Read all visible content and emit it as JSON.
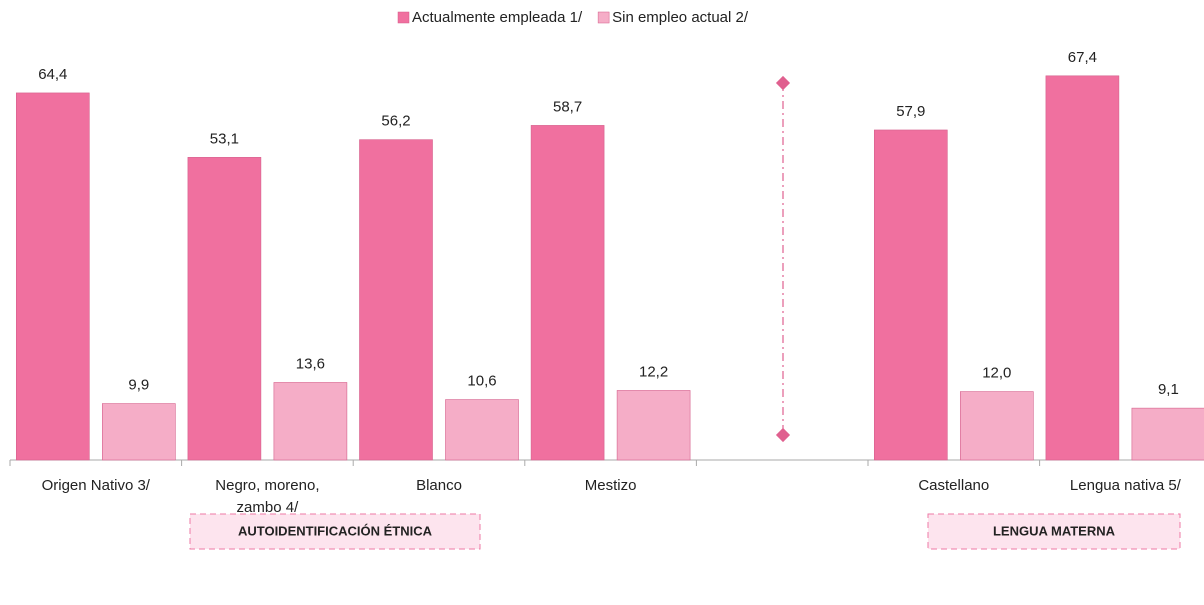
{
  "chart_data": {
    "type": "bar",
    "categories": [
      "Origen Nativo 3/",
      "Negro, moreno, zambo 4/",
      "Blanco",
      "Mestizo",
      null,
      "Castellano",
      "Lengua nativa 5/"
    ],
    "series": [
      {
        "name": "Actualmente empleada 1/",
        "color": "#f0709f",
        "values": [
          64.4,
          53.1,
          56.2,
          58.7,
          null,
          57.9,
          67.4
        ],
        "value_labels": [
          "64,4",
          "53,1",
          "56,2",
          "58,7",
          null,
          "57,9",
          "67,4"
        ]
      },
      {
        "name": "Sin empleo actual 2/",
        "color": "#f5adc7",
        "values": [
          9.9,
          13.6,
          10.6,
          12.2,
          null,
          12.0,
          9.1
        ],
        "value_labels": [
          "9,9",
          "13,6",
          "10,6",
          "12,2",
          null,
          "12,0",
          "9,1"
        ]
      }
    ],
    "ylim": [
      0,
      70
    ],
    "legend": "top",
    "annotations": [
      "AUTOIDENTIFICACIÓN ÉTNICA",
      "LENGUA MATERNA"
    ]
  }
}
